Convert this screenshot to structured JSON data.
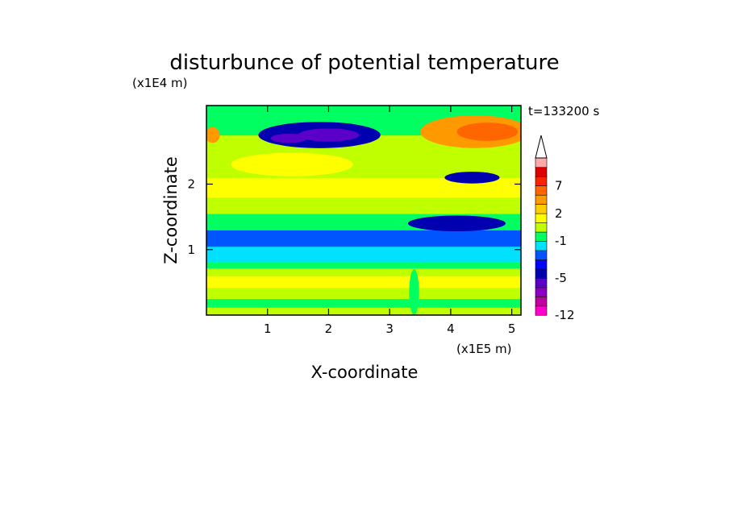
{
  "chart_data": {
    "type": "heatmap",
    "title": "disturbunce of potential temperature",
    "time_label": "t=133200 s",
    "xlabel": "X-coordinate",
    "ylabel": "Z-coordinate",
    "x_unit": "(x1E5 m)",
    "y_unit": "(x1E4 m)",
    "xlim": [
      0,
      5.15
    ],
    "ylim": [
      0,
      3.2
    ],
    "x_ticks": [
      1,
      2,
      3,
      4,
      5
    ],
    "y_ticks": [
      1,
      2
    ],
    "colorbar": {
      "levels": [
        -12,
        -10,
        -8,
        -6,
        -5,
        -4,
        -3,
        -2,
        -1,
        0,
        1,
        2,
        3,
        5,
        7,
        9,
        11
      ],
      "tick_labels": [
        "-12",
        "-5",
        "-1",
        "2",
        "7"
      ],
      "tick_values": [
        -12,
        -5,
        -1,
        2,
        7
      ],
      "colors": [
        "#ff00cc",
        "#c0009c",
        "#8b00c0",
        "#5a00c8",
        "#0000b0",
        "#0000ff",
        "#0055ff",
        "#00e0ff",
        "#00ff60",
        "#c0ff00",
        "#ffff00",
        "#ffcc00",
        "#ff9900",
        "#ff6600",
        "#ff2200",
        "#e00000",
        "#ffaaaa"
      ],
      "extend_top": true
    },
    "layers": [
      {
        "x_range": [
          0,
          5.15
        ],
        "z_range": [
          0.0,
          0.12
        ],
        "value": 0.5
      },
      {
        "x_range": [
          0,
          5.15
        ],
        "z_range": [
          0.12,
          0.25
        ],
        "value": -0.5
      },
      {
        "x_range": [
          0,
          5.15
        ],
        "z_range": [
          0.25,
          0.42
        ],
        "value": 0.5
      },
      {
        "x_range": [
          0,
          5.15
        ],
        "z_range": [
          0.42,
          0.6
        ],
        "value": 1.5
      },
      {
        "x_range": [
          0,
          5.15
        ],
        "z_range": [
          0.6,
          0.72
        ],
        "value": 0.5
      },
      {
        "x_range": [
          0,
          5.15
        ],
        "z_range": [
          0.72,
          0.82
        ],
        "value": -0.5
      },
      {
        "x_range": [
          0,
          5.15
        ],
        "z_range": [
          0.82,
          1.05
        ],
        "value": -1.5
      },
      {
        "x_range": [
          0,
          5.15
        ],
        "z_range": [
          1.05,
          1.3
        ],
        "value": -2.5
      },
      {
        "x_range": [
          0,
          5.15
        ],
        "z_range": [
          1.3,
          1.55
        ],
        "value": -0.5
      },
      {
        "x_range": [
          0,
          5.15
        ],
        "z_range": [
          1.55,
          1.8
        ],
        "value": 0.5
      },
      {
        "x_range": [
          0,
          5.15
        ],
        "z_range": [
          1.8,
          2.1
        ],
        "value": 1.5
      },
      {
        "x_range": [
          0,
          5.15
        ],
        "z_range": [
          2.1,
          2.45
        ],
        "value": 0.5
      },
      {
        "x_range": [
          0,
          5.15
        ],
        "z_range": [
          2.45,
          2.75
        ],
        "value": 0.5
      },
      {
        "x_range": [
          0,
          5.15
        ],
        "z_range": [
          2.75,
          3.2
        ],
        "value": -0.5
      }
    ],
    "features": [
      {
        "x_center": 1.85,
        "z_center": 2.75,
        "x_radius": 1.0,
        "z_radius": 0.2,
        "value": -4.5
      },
      {
        "x_center": 2.0,
        "z_center": 2.75,
        "x_radius": 0.5,
        "z_radius": 0.1,
        "value": -5.5
      },
      {
        "x_center": 1.35,
        "z_center": 2.7,
        "x_radius": 0.3,
        "z_radius": 0.07,
        "value": -5.5
      },
      {
        "x_center": 4.4,
        "z_center": 2.8,
        "x_radius": 0.9,
        "z_radius": 0.25,
        "value": 3.5
      },
      {
        "x_center": 4.6,
        "z_center": 2.8,
        "x_radius": 0.5,
        "z_radius": 0.14,
        "value": 5.5
      },
      {
        "x_center": 4.35,
        "z_center": 2.1,
        "x_radius": 0.45,
        "z_radius": 0.09,
        "value": -4.5
      },
      {
        "x_center": 4.1,
        "z_center": 1.4,
        "x_radius": 0.8,
        "z_radius": 0.12,
        "value": -4.5
      },
      {
        "x_center": 1.4,
        "z_center": 2.3,
        "x_radius": 1.0,
        "z_radius": 0.18,
        "value": 1.5
      },
      {
        "x_center": 0.1,
        "z_center": 2.75,
        "x_radius": 0.12,
        "z_radius": 0.12,
        "value": 3.5
      },
      {
        "x_center": 3.4,
        "z_center": 0.35,
        "x_radius": 0.08,
        "z_radius": 0.35,
        "value": -0.5
      }
    ]
  }
}
